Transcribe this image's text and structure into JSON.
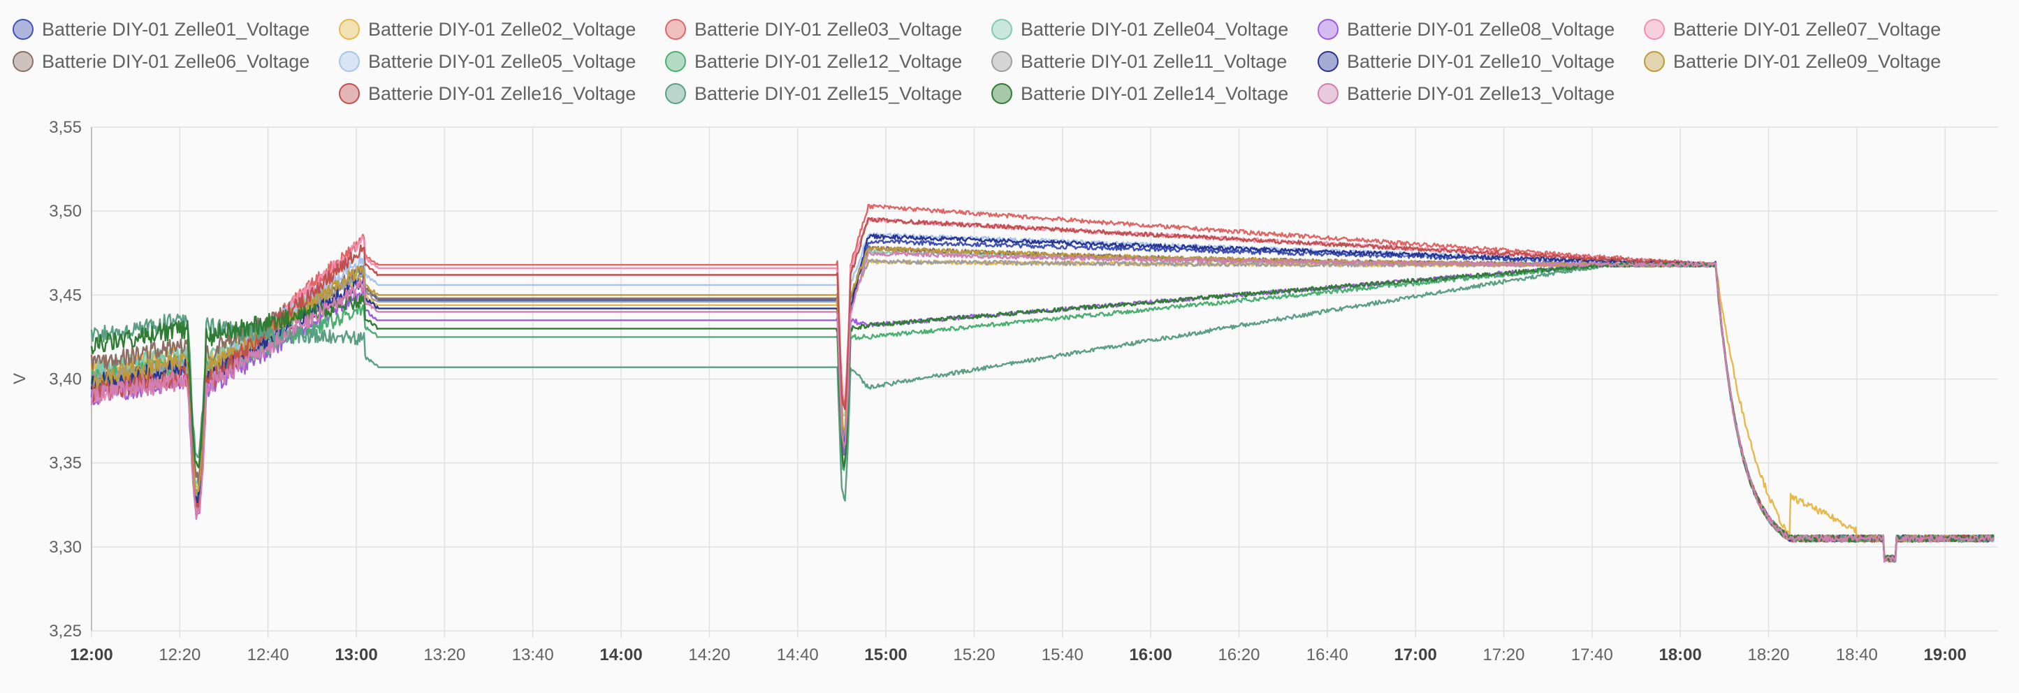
{
  "chart_data": {
    "type": "line",
    "ylabel": "V",
    "ylim": [
      3.25,
      3.55
    ],
    "y_ticks": [
      "3,25",
      "3,30",
      "3,35",
      "3,40",
      "3,45",
      "3,50",
      "3,55"
    ],
    "x_ticks": [
      {
        "label": "12:00",
        "t": 0,
        "major": true
      },
      {
        "label": "12:20",
        "t": 20,
        "major": false
      },
      {
        "label": "12:40",
        "t": 40,
        "major": false
      },
      {
        "label": "13:00",
        "t": 60,
        "major": true
      },
      {
        "label": "13:20",
        "t": 80,
        "major": false
      },
      {
        "label": "13:40",
        "t": 100,
        "major": false
      },
      {
        "label": "14:00",
        "t": 120,
        "major": true
      },
      {
        "label": "14:20",
        "t": 140,
        "major": false
      },
      {
        "label": "14:40",
        "t": 160,
        "major": false
      },
      {
        "label": "15:00",
        "t": 180,
        "major": true
      },
      {
        "label": "15:20",
        "t": 200,
        "major": false
      },
      {
        "label": "15:40",
        "t": 220,
        "major": false
      },
      {
        "label": "16:00",
        "t": 240,
        "major": true
      },
      {
        "label": "16:20",
        "t": 260,
        "major": false
      },
      {
        "label": "16:40",
        "t": 280,
        "major": false
      },
      {
        "label": "17:00",
        "t": 300,
        "major": true
      },
      {
        "label": "17:20",
        "t": 320,
        "major": false
      },
      {
        "label": "17:40",
        "t": 340,
        "major": false
      },
      {
        "label": "18:00",
        "t": 360,
        "major": true
      },
      {
        "label": "18:20",
        "t": 380,
        "major": false
      },
      {
        "label": "18:40",
        "t": 400,
        "major": false
      },
      {
        "label": "19:00",
        "t": 420,
        "major": true
      }
    ],
    "xlim": [
      0,
      432
    ],
    "grid": true,
    "legend_position": "top",
    "series": [
      {
        "name": "Batterie DIY-01 Zelle01_Voltage",
        "color": "#3f51b5",
        "base": 3.395,
        "rest": 3.447,
        "peak": 3.482,
        "recover": 3.465,
        "ramp": 1
      },
      {
        "name": "Batterie DIY-01 Zelle02_Voltage",
        "color": "#e8b84a",
        "base": 3.405,
        "rest": 3.444,
        "peak": 3.47,
        "recover": 3.452,
        "ramp": 3
      },
      {
        "name": "Batterie DIY-01 Zelle03_Voltage",
        "color": "#e06666",
        "base": 3.392,
        "rest": 3.468,
        "peak": 3.503,
        "recover": 3.49,
        "ramp": 1
      },
      {
        "name": "Batterie DIY-01 Zelle04_Voltage",
        "color": "#80cbb0",
        "base": 3.405,
        "rest": 3.448,
        "peak": 3.476,
        "recover": 3.467,
        "ramp": 2
      },
      {
        "name": "Batterie DIY-01 Zelle08_Voltage",
        "color": "#9c5ce0",
        "base": 3.39,
        "rest": 3.435,
        "peak": 3.432,
        "recover": 3.415,
        "ramp": 5
      },
      {
        "name": "Batterie DIY-01 Zelle07_Voltage",
        "color": "#f48fb1",
        "base": 3.392,
        "rest": 3.466,
        "peak": 3.495,
        "recover": 3.486,
        "ramp": 1
      },
      {
        "name": "Batterie DIY-01 Zelle06_Voltage",
        "color": "#8d6e63",
        "base": 3.41,
        "rest": 3.448,
        "peak": 3.478,
        "recover": 3.472,
        "ramp": 2
      },
      {
        "name": "Batterie DIY-01 Zelle05_Voltage",
        "color": "#a9c4ee",
        "base": 3.398,
        "rest": 3.456,
        "peak": 3.486,
        "recover": 3.478,
        "ramp": 1
      },
      {
        "name": "Batterie DIY-01 Zelle12_Voltage",
        "color": "#4caf72",
        "base": 3.4,
        "rest": 3.425,
        "peak": 3.425,
        "recover": 3.418,
        "ramp": 5
      },
      {
        "name": "Batterie DIY-01 Zelle11_Voltage",
        "color": "#9e9e9e",
        "base": 3.398,
        "rest": 3.446,
        "peak": 3.47,
        "recover": 3.458,
        "ramp": 3
      },
      {
        "name": "Batterie DIY-01 Zelle10_Voltage",
        "color": "#283593",
        "base": 3.397,
        "rest": 3.442,
        "peak": 3.485,
        "recover": 3.478,
        "ramp": 1
      },
      {
        "name": "Batterie DIY-01 Zelle09_Voltage",
        "color": "#bf9a3a",
        "base": 3.4,
        "rest": 3.45,
        "peak": 3.478,
        "recover": 3.47,
        "ramp": 2
      },
      {
        "name": "Batterie DIY-01 Zelle16_Voltage",
        "color": "#c0504d",
        "base": 3.392,
        "rest": 3.462,
        "peak": 3.495,
        "recover": 3.485,
        "ramp": 1
      },
      {
        "name": "Batterie DIY-01 Zelle15_Voltage",
        "color": "#5a9e84",
        "base": 3.425,
        "rest": 3.407,
        "peak": 3.395,
        "recover": 3.39,
        "ramp": 6
      },
      {
        "name": "Batterie DIY-01 Zelle14_Voltage",
        "color": "#2e7d32",
        "base": 3.42,
        "rest": 3.43,
        "peak": 3.432,
        "recover": 3.43,
        "ramp": 4
      },
      {
        "name": "Batterie DIY-01 Zelle13_Voltage",
        "color": "#d07fb0",
        "base": 3.39,
        "rest": 3.44,
        "peak": 3.475,
        "recover": 3.466,
        "ramp": 2
      }
    ]
  }
}
